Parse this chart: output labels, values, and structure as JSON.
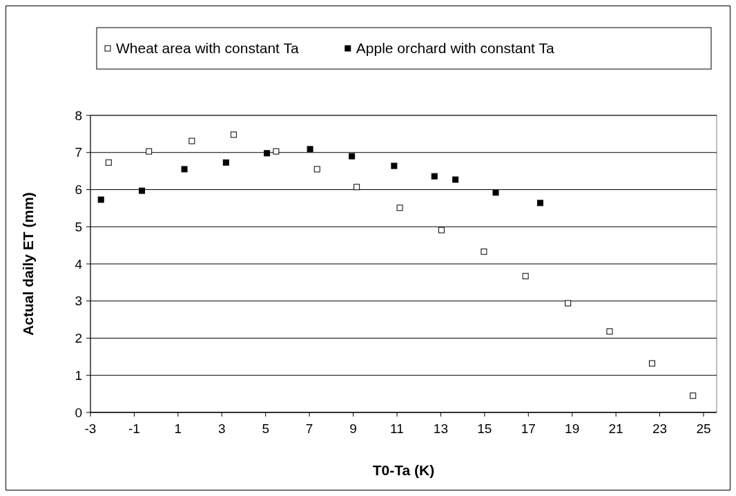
{
  "chart_data": {
    "type": "scatter",
    "xlabel": "T0-Ta (K)",
    "ylabel": "Actual daily ET (mm)",
    "xlim": [
      -3,
      25.6
    ],
    "xticks": [
      -3,
      -1,
      1,
      3,
      5,
      7,
      9,
      11,
      13,
      15,
      17,
      19,
      21,
      23,
      25
    ],
    "ylim": [
      0,
      8
    ],
    "yticks": [
      0,
      1,
      2,
      3,
      4,
      5,
      6,
      7,
      8
    ],
    "grid": "y",
    "legend": "top",
    "marker": "square",
    "series": [
      {
        "name": "Wheat area with constant Ta",
        "color": "#ffffff",
        "x": [
          -2.17,
          -0.33,
          1.63,
          3.54,
          5.48,
          7.35,
          9.16,
          11.13,
          13.03,
          14.97,
          16.87,
          18.81,
          20.71,
          22.65,
          24.52
        ],
        "values": [
          6.73,
          7.03,
          7.31,
          7.48,
          7.03,
          6.55,
          6.07,
          5.51,
          4.91,
          4.33,
          3.67,
          2.94,
          2.18,
          1.32,
          0.45
        ]
      },
      {
        "name": "Apple orchard with constant Ta",
        "color": "#000000",
        "x": [
          -2.52,
          -0.65,
          1.29,
          3.19,
          5.06,
          7.03,
          8.94,
          10.87,
          12.71,
          13.67,
          15.51,
          17.54
        ],
        "values": [
          5.73,
          5.97,
          6.55,
          6.73,
          6.98,
          7.09,
          6.9,
          6.64,
          6.36,
          6.27,
          5.92,
          5.64
        ]
      }
    ]
  }
}
